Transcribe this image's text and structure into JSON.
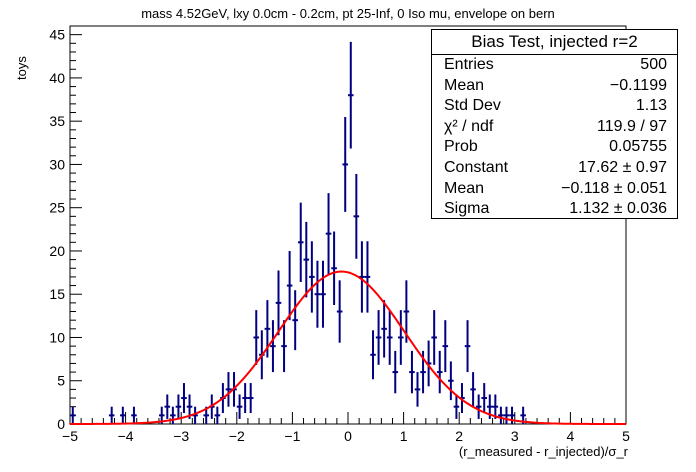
{
  "chart_data": {
    "type": "histogram",
    "title": "mass 4.52GeV, lxy 0.0cm - 0.2cm, pt 25-Inf, 0 Iso mu, envelope on bern",
    "xlabel": "(r_measured - r_injected)/σ_r",
    "ylabel": "toys",
    "xlim": [
      -5,
      5
    ],
    "ylim": [
      0,
      46
    ],
    "xticks": [
      -5,
      -4,
      -3,
      -2,
      -1,
      0,
      1,
      2,
      3,
      4,
      5
    ],
    "yticks": [
      0,
      5,
      10,
      15,
      20,
      25,
      30,
      35,
      40,
      45
    ],
    "bin_width": 0.1,
    "series": [
      {
        "name": "",
        "color": "#000080",
        "kind": "histogram_errorbars",
        "x": [
          -4.95,
          -4.25,
          -4.05,
          -3.85,
          -3.35,
          -3.25,
          -3.15,
          -3.05,
          -2.95,
          -2.85,
          -2.75,
          -2.55,
          -2.45,
          -2.35,
          -2.25,
          -2.15,
          -2.05,
          -1.95,
          -1.85,
          -1.75,
          -1.65,
          -1.55,
          -1.45,
          -1.35,
          -1.25,
          -1.15,
          -1.05,
          -0.95,
          -0.85,
          -0.75,
          -0.65,
          -0.55,
          -0.45,
          -0.35,
          -0.25,
          -0.15,
          -0.05,
          0.05,
          0.15,
          0.25,
          0.35,
          0.45,
          0.55,
          0.65,
          0.75,
          0.85,
          0.95,
          1.05,
          1.15,
          1.25,
          1.35,
          1.45,
          1.55,
          1.65,
          1.75,
          1.85,
          1.95,
          2.05,
          2.15,
          2.25,
          2.35,
          2.45,
          2.55,
          2.65,
          2.75,
          2.85,
          2.95,
          3.15
        ],
        "y": [
          1,
          1,
          1,
          1,
          1,
          2,
          1,
          2,
          3,
          2,
          1,
          1,
          2,
          1,
          3,
          4,
          4,
          2,
          3,
          3,
          10,
          8,
          11,
          9,
          14,
          9,
          16,
          12,
          21,
          19,
          17,
          15,
          15,
          22,
          18,
          13,
          30,
          38,
          24,
          17,
          17,
          8,
          10,
          11,
          10,
          6,
          10,
          13,
          6,
          4,
          6,
          7,
          10,
          6,
          9,
          5,
          2,
          3,
          9,
          4,
          2,
          3,
          2,
          2,
          1,
          1,
          1,
          1
        ]
      },
      {
        "name": "",
        "color": "#ff0000",
        "kind": "gaussian_fit",
        "constant": 17.62,
        "mean": -0.118,
        "sigma": 1.132
      }
    ],
    "stats_box": {
      "title": "Bias Test, injected r=2",
      "rows": [
        {
          "label": "Entries",
          "value": "500"
        },
        {
          "label": "Mean",
          "value": "−0.1199"
        },
        {
          "label": "Std Dev",
          "value": "1.13"
        },
        {
          "label": "χ² / ndf",
          "value": "119.9 / 97"
        },
        {
          "label": "Prob",
          "value": "0.05755"
        },
        {
          "label": "Constant",
          "value": "17.62 ± 0.97"
        },
        {
          "label": "Mean",
          "value": "−0.118 ± 0.051"
        },
        {
          "label": "Sigma",
          "value": "1.132 ± 0.036"
        }
      ]
    }
  }
}
